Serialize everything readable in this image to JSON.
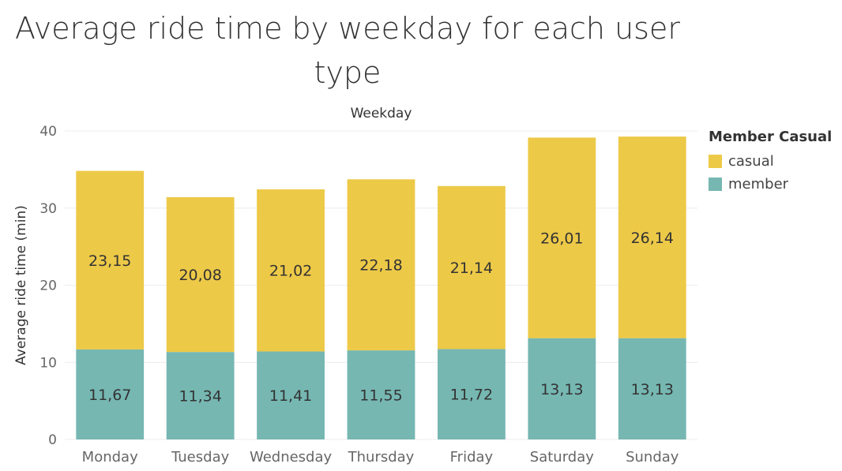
{
  "chart_data": {
    "type": "bar",
    "stacked": true,
    "title_line1": "Average ride time by weekday for each  user",
    "title_line2": "type",
    "column_header": "Weekday",
    "ylabel": "Average ride time (min)",
    "ylim": [
      0,
      40
    ],
    "yticks": [
      "0",
      "10",
      "20",
      "30",
      "40"
    ],
    "categories": [
      "Monday",
      "Tuesday",
      "Wednesday",
      "Thursday",
      "Friday",
      "Saturday",
      "Sunday"
    ],
    "series": [
      {
        "name": "member",
        "color": "#76b7b2",
        "values": [
          11.67,
          11.34,
          11.41,
          11.55,
          11.72,
          13.13,
          13.13
        ],
        "labels": [
          "11,67",
          "11,34",
          "11,41",
          "11,55",
          "11,72",
          "13,13",
          "13,13"
        ]
      },
      {
        "name": "casual",
        "color": "#edc948",
        "values": [
          23.15,
          20.08,
          21.02,
          22.18,
          21.14,
          26.01,
          26.14
        ],
        "labels": [
          "23,15",
          "20,08",
          "21,02",
          "22,18",
          "21,14",
          "26,01",
          "26,14"
        ]
      }
    ],
    "legend": {
      "title": "Member Casual",
      "position": "right",
      "entries": [
        {
          "label": "casual",
          "color": "#edc948"
        },
        {
          "label": "member",
          "color": "#76b7b2"
        }
      ]
    },
    "grid": true
  }
}
